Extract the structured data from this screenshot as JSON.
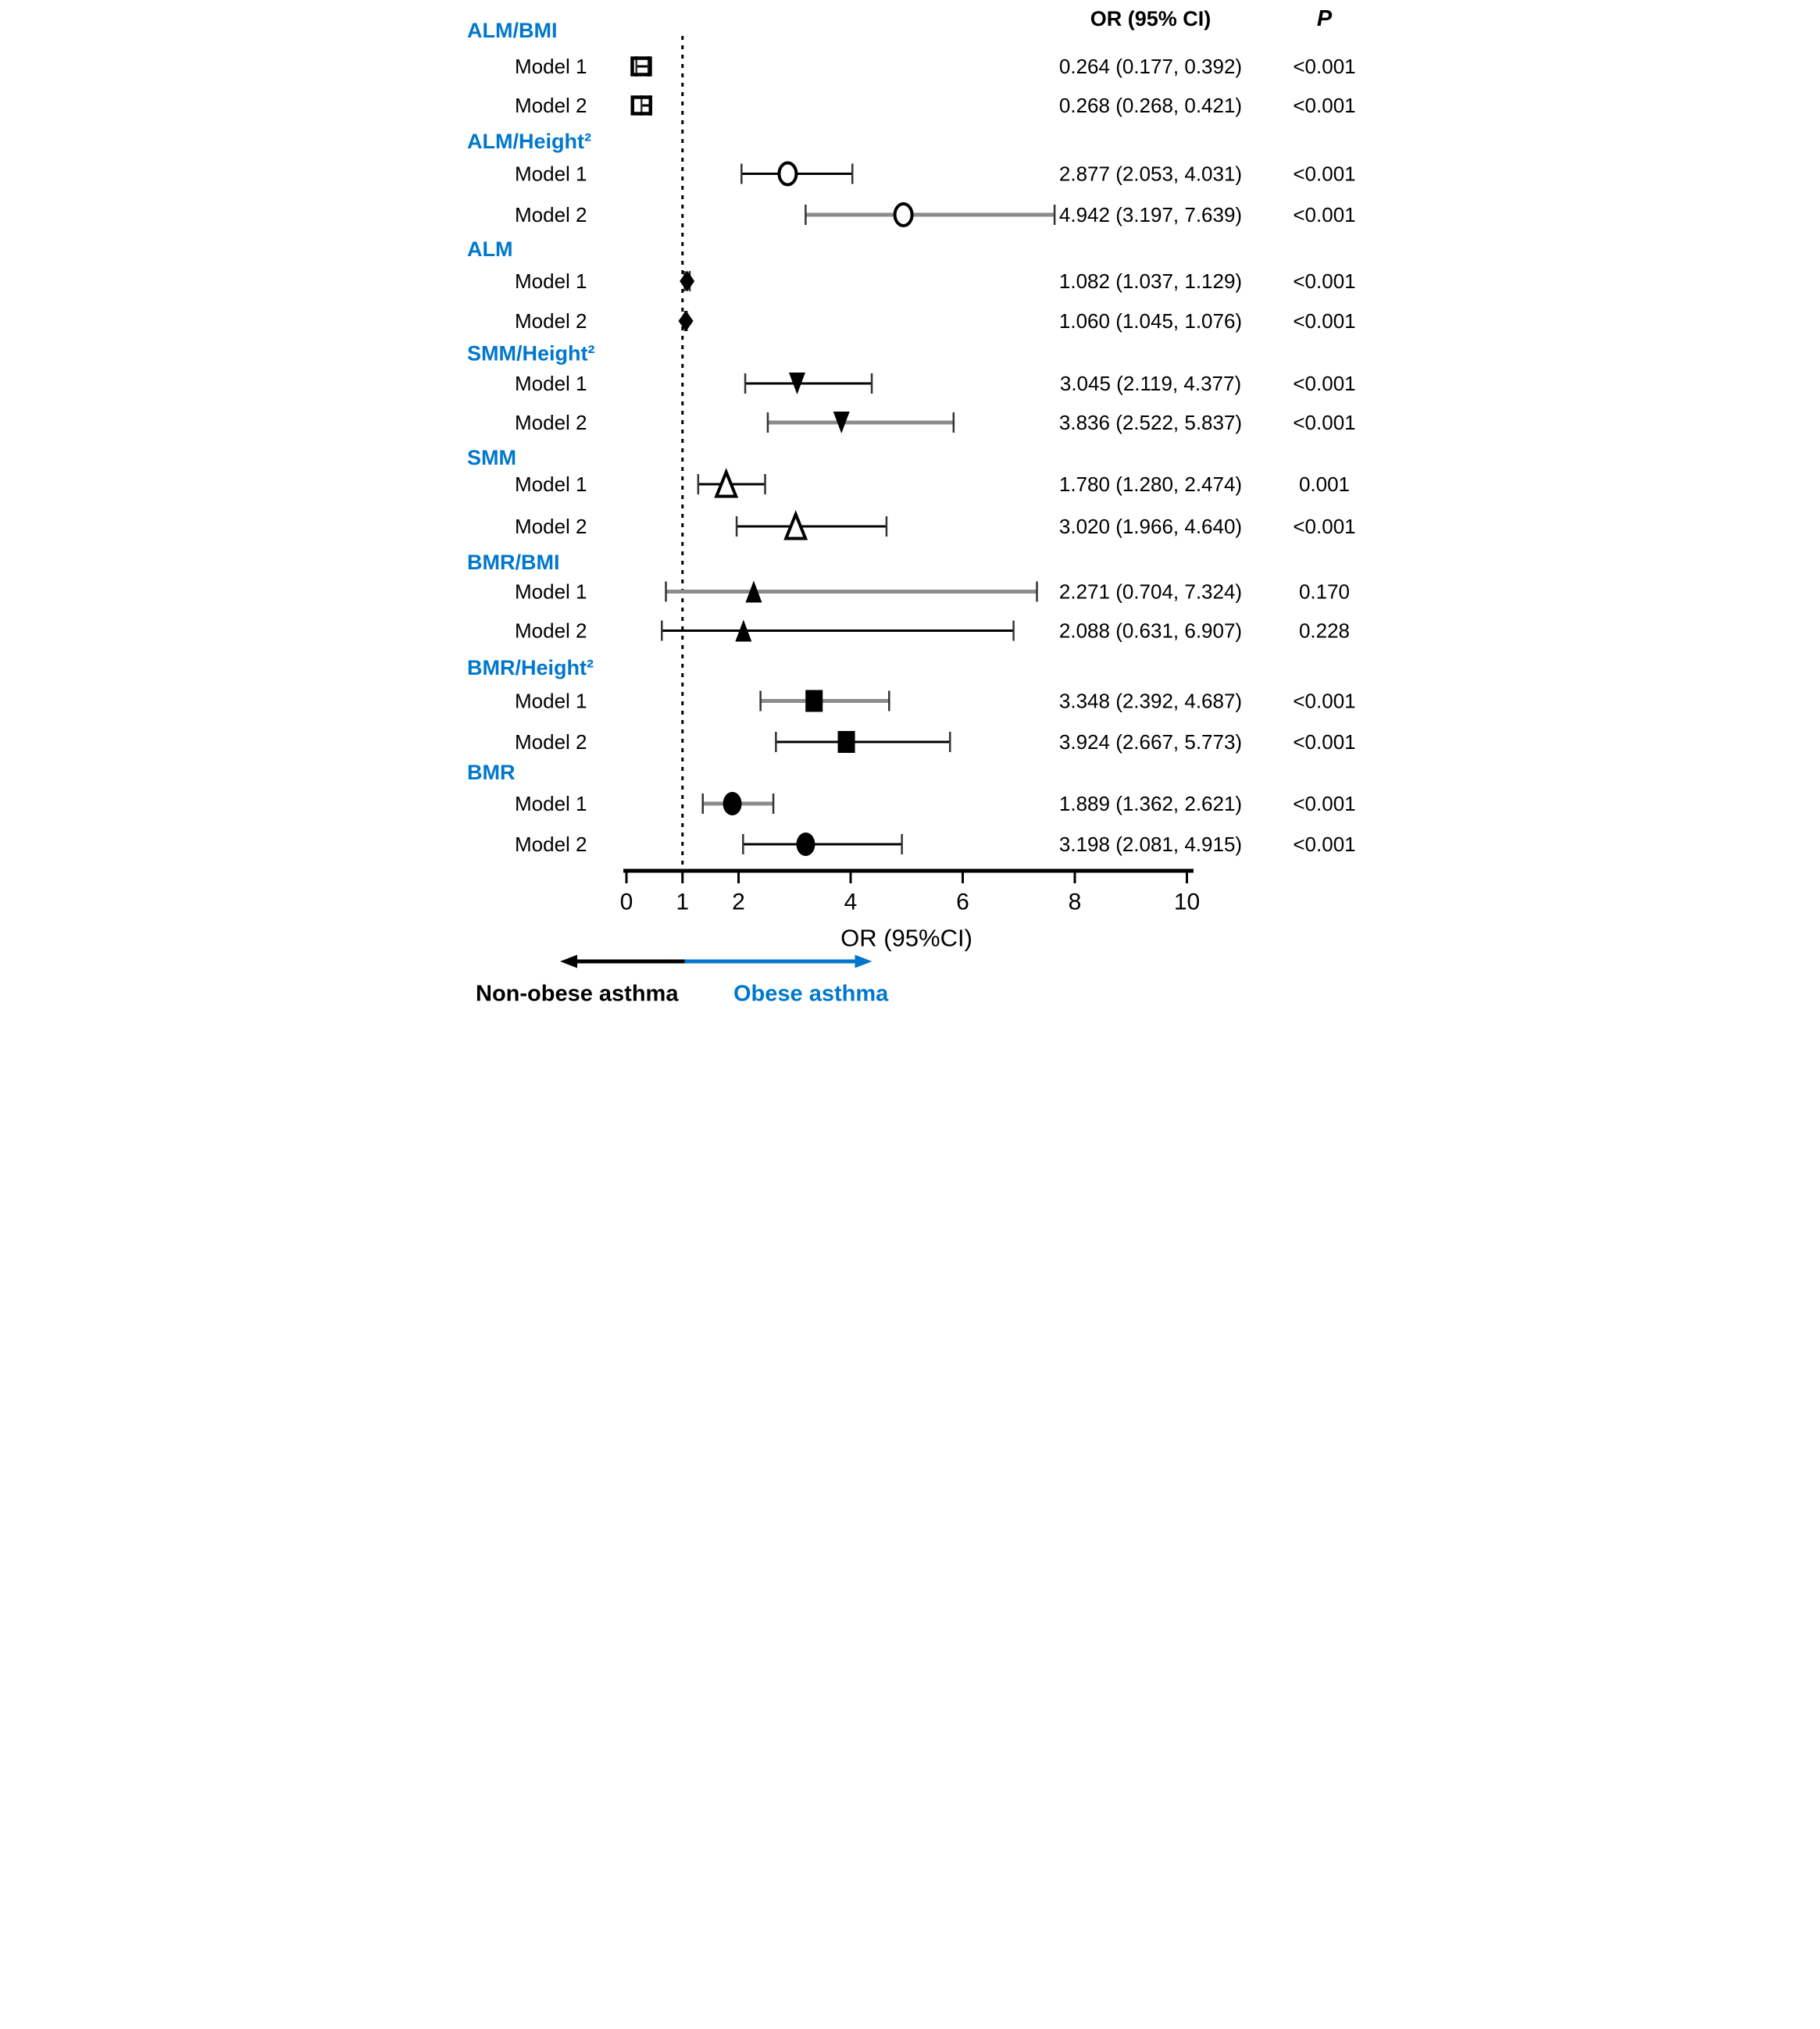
{
  "header": {
    "or_col": "OR (95% CI)",
    "p_col": "P"
  },
  "axis": {
    "title": "OR (95%CI)",
    "ticks": [
      0,
      1,
      2,
      4,
      6,
      8,
      10
    ],
    "min": 0,
    "max": 10,
    "ref_line": 1
  },
  "footer": {
    "left_label": "Non-obese asthma",
    "right_label": "Obese asthma"
  },
  "colors": {
    "blue": "#0077CC",
    "black": "#000000",
    "gray_line": "#8C8C8C",
    "white": "#FFFFFF"
  },
  "chart_data": {
    "type": "forest",
    "xlabel": "OR (95%CI)",
    "xlim": [
      0,
      10
    ],
    "reference_line": 1,
    "sections": [
      {
        "label": "ALM/BMI",
        "marker": "square-open",
        "rows": [
          {
            "model": "Model 1",
            "or": 0.264,
            "ci_low": 0.177,
            "ci_high": 0.392,
            "or_text": "0.264 (0.177, 0.392)",
            "p": "<0.001",
            "line": "black"
          },
          {
            "model": "Model 2",
            "or": 0.268,
            "ci_low": 0.268,
            "ci_high": 0.421,
            "or_text": "0.268 (0.268, 0.421)",
            "p": "<0.001",
            "line": "black"
          }
        ]
      },
      {
        "label": "ALM/Height²",
        "marker": "circle-open",
        "rows": [
          {
            "model": "Model 1",
            "or": 2.877,
            "ci_low": 2.053,
            "ci_high": 4.031,
            "or_text": "2.877 (2.053, 4.031)",
            "p": "<0.001",
            "line": "black"
          },
          {
            "model": "Model 2",
            "or": 4.942,
            "ci_low": 3.197,
            "ci_high": 7.639,
            "or_text": "4.942 (3.197, 7.639)",
            "p": "<0.001",
            "line": "gray"
          }
        ]
      },
      {
        "label": "ALM",
        "marker": "diamond-filled",
        "rows": [
          {
            "model": "Model 1",
            "or": 1.082,
            "ci_low": 1.037,
            "ci_high": 1.129,
            "or_text": "1.082 (1.037, 1.129)",
            "p": "<0.001",
            "line": "black"
          },
          {
            "model": "Model 2",
            "or": 1.06,
            "ci_low": 1.045,
            "ci_high": 1.076,
            "or_text": "1.060 (1.045, 1.076)",
            "p": "<0.001",
            "line": "black"
          }
        ]
      },
      {
        "label": "SMM/Height²",
        "marker": "triangle-down-filled",
        "rows": [
          {
            "model": "Model 1",
            "or": 3.045,
            "ci_low": 2.119,
            "ci_high": 4.377,
            "or_text": "3.045 (2.119, 4.377)",
            "p": "<0.001",
            "line": "black"
          },
          {
            "model": "Model 2",
            "or": 3.836,
            "ci_low": 2.522,
            "ci_high": 5.837,
            "or_text": "3.836 (2.522, 5.837)",
            "p": "<0.001",
            "line": "gray"
          }
        ]
      },
      {
        "label": "SMM",
        "marker": "triangle-up-open",
        "rows": [
          {
            "model": "Model 1",
            "or": 1.78,
            "ci_low": 1.28,
            "ci_high": 2.474,
            "or_text": "1.780 (1.280, 2.474)",
            "p": "0.001",
            "line": "black"
          },
          {
            "model": "Model 2",
            "or": 3.02,
            "ci_low": 1.966,
            "ci_high": 4.64,
            "or_text": "3.020 (1.966, 4.640)",
            "p": "<0.001",
            "line": "black"
          }
        ]
      },
      {
        "label": "BMR/BMI",
        "marker": "triangle-up-filled",
        "rows": [
          {
            "model": "Model 1",
            "or": 2.271,
            "ci_low": 0.704,
            "ci_high": 7.324,
            "or_text": "2.271 (0.704, 7.324)",
            "p": "0.170",
            "line": "gray"
          },
          {
            "model": "Model 2",
            "or": 2.088,
            "ci_low": 0.631,
            "ci_high": 6.907,
            "or_text": "2.088 (0.631, 6.907)",
            "p": "0.228",
            "line": "black"
          }
        ]
      },
      {
        "label": "BMR/Height²",
        "marker": "square-filled",
        "rows": [
          {
            "model": "Model 1",
            "or": 3.348,
            "ci_low": 2.392,
            "ci_high": 4.687,
            "or_text": "3.348 (2.392, 4.687)",
            "p": "<0.001",
            "line": "gray"
          },
          {
            "model": "Model 2",
            "or": 3.924,
            "ci_low": 2.667,
            "ci_high": 5.773,
            "or_text": "3.924 (2.667, 5.773)",
            "p": "<0.001",
            "line": "black"
          }
        ]
      },
      {
        "label": "BMR",
        "marker": "circle-filled",
        "rows": [
          {
            "model": "Model 1",
            "or": 1.889,
            "ci_low": 1.362,
            "ci_high": 2.621,
            "or_text": "1.889 (1.362, 2.621)",
            "p": "<0.001",
            "line": "gray"
          },
          {
            "model": "Model 2",
            "or": 3.198,
            "ci_low": 2.081,
            "ci_high": 4.915,
            "or_text": "3.198 (2.081, 4.915)",
            "p": "<0.001",
            "line": "black"
          }
        ]
      }
    ]
  }
}
